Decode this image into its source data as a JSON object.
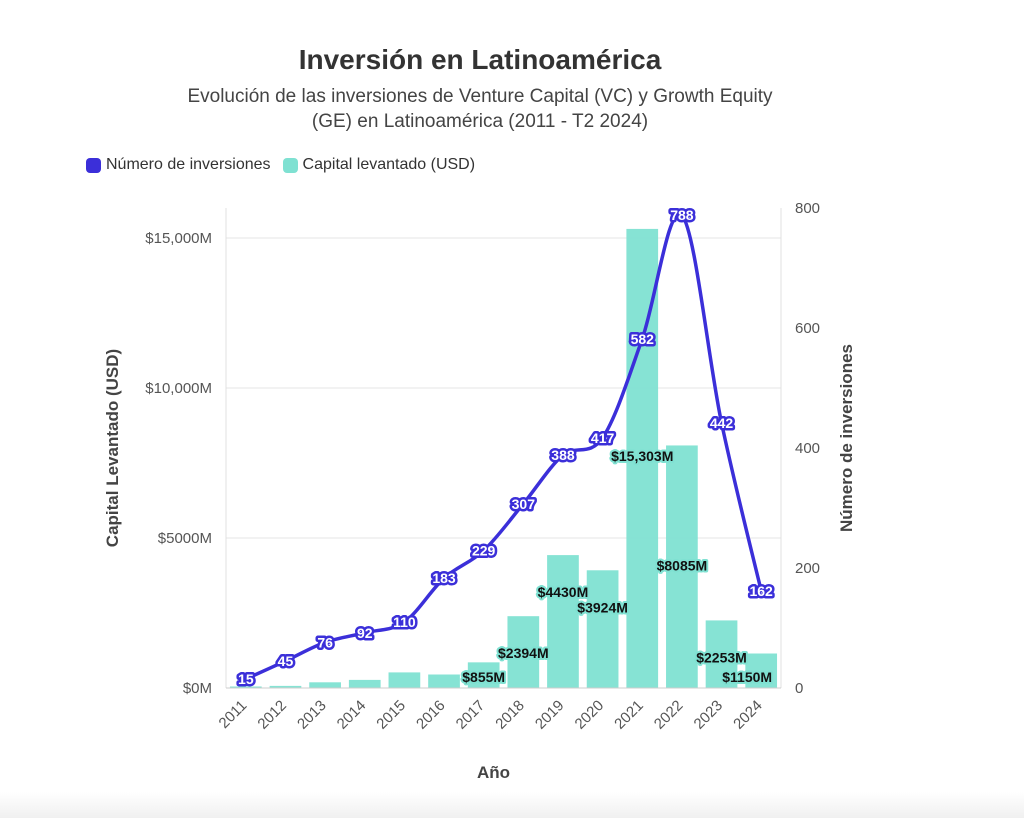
{
  "chart_data": {
    "type": "bar+line",
    "title": "Inversión en Latinoamérica",
    "subtitle": "Evolución de las inversiones de Venture Capital (VC) y Growth Equity (GE) en Latinoamérica (2011 - T2 2024)",
    "xlabel": "Año",
    "ylabel_left": "Capital Levantado (USD)",
    "ylabel_right": "Número de inversiones",
    "categories": [
      "2011",
      "2012",
      "2013",
      "2014",
      "2015",
      "2016",
      "2017",
      "2018",
      "2019",
      "2020",
      "2021",
      "2022",
      "2023",
      "2024"
    ],
    "left_ticks": [
      "$0M",
      "$5000M",
      "$10,000M",
      "$15,000M"
    ],
    "left_tick_values": [
      0,
      5000,
      10000,
      15000
    ],
    "ylim_left": [
      0,
      16000
    ],
    "right_ticks": [
      "0",
      "200",
      "400",
      "600",
      "800"
    ],
    "right_tick_values": [
      0,
      200,
      400,
      600,
      800
    ],
    "ylim_right": [
      0,
      800
    ],
    "grid": true,
    "legend_position": "top-left",
    "series": [
      {
        "name": "Número de inversiones",
        "kind": "line",
        "axis": "right",
        "color": "#3b2fd9",
        "values": [
          15,
          45,
          76,
          92,
          110,
          183,
          229,
          307,
          388,
          417,
          582,
          788,
          442,
          162
        ],
        "labels": [
          "15",
          "45",
          "76",
          "92",
          "110",
          "183",
          "229",
          "307",
          "388",
          "417",
          "582",
          "788",
          "442",
          "162"
        ]
      },
      {
        "name": "Capital levantado (USD)",
        "kind": "bar",
        "axis": "left",
        "color": "#7fe1d2",
        "values": [
          50,
          70,
          190,
          270,
          520,
          450,
          855,
          2394,
          4430,
          3924,
          15303,
          8085,
          2253,
          1150
        ],
        "labels": [
          "",
          "",
          "",
          "",
          "",
          "",
          "$855M",
          "$2394M",
          "$4430M",
          "$3924M",
          "$15,303M",
          "$8085M",
          "$2253M",
          "$1150M"
        ]
      }
    ]
  }
}
